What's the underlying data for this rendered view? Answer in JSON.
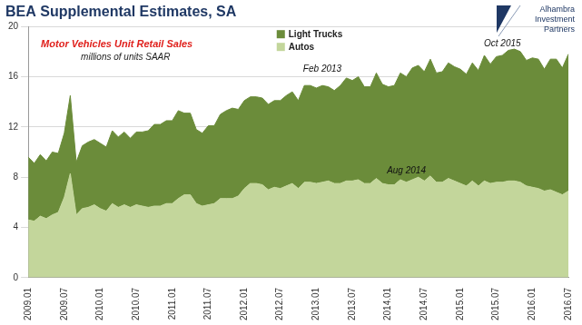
{
  "chart_data": {
    "type": "area",
    "title": "BEA Supplemental Estimates, SA",
    "subtitle": "Motor Vehicles Unit Retail Sales",
    "units": "millions of units SAAR",
    "logo": "Alhambra Investment Partners",
    "stacked": true,
    "grid": true,
    "legend": "top",
    "categories": [
      "2009.01",
      null,
      null,
      null,
      null,
      null,
      "2009.07",
      null,
      null,
      null,
      null,
      null,
      "2010.01",
      null,
      null,
      null,
      null,
      null,
      "2010.07",
      null,
      null,
      null,
      null,
      null,
      "2011.01",
      null,
      null,
      null,
      null,
      null,
      "2011.07",
      null,
      null,
      null,
      null,
      null,
      "2012.01",
      null,
      null,
      null,
      null,
      null,
      "2012.07",
      null,
      null,
      null,
      null,
      null,
      "2013.01",
      null,
      null,
      null,
      null,
      null,
      "2013.07",
      null,
      null,
      null,
      null,
      null,
      "2014.01",
      null,
      null,
      null,
      null,
      null,
      "2014.07",
      null,
      null,
      null,
      null,
      null,
      "2015.01",
      null,
      null,
      null,
      null,
      null,
      "2015.07",
      null,
      null,
      null,
      null,
      null,
      "2016.01",
      null,
      null,
      null,
      null,
      null,
      "2016.07"
    ],
    "series": [
      {
        "name": "Autos",
        "color": "#c3d69b",
        "values": [
          4.6,
          4.5,
          4.9,
          4.7,
          5.0,
          5.2,
          6.4,
          8.3,
          5.0,
          5.5,
          5.6,
          5.8,
          5.5,
          5.3,
          5.9,
          5.6,
          5.8,
          5.6,
          5.8,
          5.7,
          5.6,
          5.7,
          5.7,
          5.9,
          5.9,
          6.3,
          6.6,
          6.6,
          5.9,
          5.7,
          5.8,
          5.9,
          6.3,
          6.3,
          6.3,
          6.5,
          7.1,
          7.5,
          7.5,
          7.4,
          7.0,
          7.2,
          7.1,
          7.3,
          7.5,
          7.1,
          7.6,
          7.6,
          7.5,
          7.6,
          7.7,
          7.5,
          7.5,
          7.7,
          7.7,
          7.8,
          7.5,
          7.5,
          7.9,
          7.5,
          7.4,
          7.4,
          7.8,
          7.6,
          7.8,
          8.0,
          7.7,
          8.1,
          7.6,
          7.6,
          7.9,
          7.7,
          7.5,
          7.3,
          7.7,
          7.3,
          7.7,
          7.5,
          7.6,
          7.6,
          7.7,
          7.7,
          7.6,
          7.3,
          7.2,
          7.1,
          6.9,
          7.0,
          6.8,
          6.6,
          6.9
        ]
      },
      {
        "name": "Light Trucks",
        "color": "#6b8c3a",
        "values": [
          5.0,
          4.6,
          4.9,
          4.6,
          5.0,
          4.7,
          5.1,
          6.2,
          4.2,
          5.0,
          5.2,
          5.2,
          5.2,
          5.1,
          5.8,
          5.6,
          5.8,
          5.5,
          5.8,
          5.9,
          6.1,
          6.5,
          6.5,
          6.6,
          6.6,
          7.0,
          6.5,
          6.5,
          5.9,
          5.8,
          6.3,
          6.2,
          6.7,
          7.0,
          7.2,
          6.9,
          7.0,
          6.9,
          6.9,
          6.9,
          6.8,
          6.9,
          7.0,
          7.2,
          7.3,
          7.0,
          7.7,
          7.7,
          7.6,
          7.7,
          7.5,
          7.4,
          7.8,
          8.2,
          8.0,
          8.2,
          7.7,
          7.7,
          8.4,
          7.9,
          7.8,
          7.9,
          8.5,
          8.4,
          8.9,
          8.9,
          8.7,
          9.3,
          8.7,
          8.8,
          9.2,
          9.1,
          9.1,
          8.9,
          9.4,
          9.2,
          10.0,
          9.5,
          10.0,
          10.1,
          10.4,
          10.5,
          10.4,
          10.0,
          10.3,
          10.3,
          9.7,
          10.4,
          10.6,
          10.1,
          10.9
        ]
      }
    ],
    "annotations": [
      {
        "text": "Feb 2013",
        "index": 49,
        "y": 16.6
      },
      {
        "text": "Aug 2014",
        "index": 63,
        "y": 8.5
      },
      {
        "text": "Oct 2015",
        "index": 79,
        "y": 18.6
      }
    ],
    "ylim": [
      0,
      20
    ],
    "yticks": [
      0,
      4,
      8,
      12,
      16,
      20
    ]
  }
}
